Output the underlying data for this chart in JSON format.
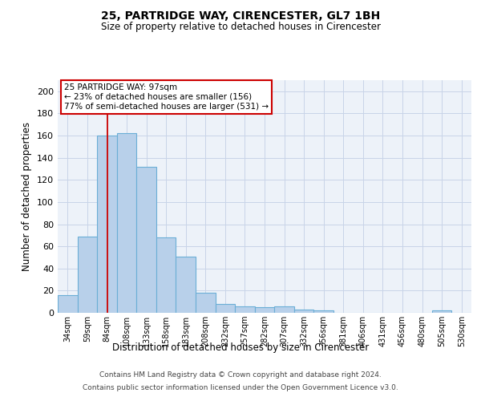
{
  "title": "25, PARTRIDGE WAY, CIRENCESTER, GL7 1BH",
  "subtitle": "Size of property relative to detached houses in Cirencester",
  "xlabel": "Distribution of detached houses by size in Cirencester",
  "ylabel": "Number of detached properties",
  "bin_labels": [
    "34sqm",
    "59sqm",
    "84sqm",
    "108sqm",
    "133sqm",
    "158sqm",
    "183sqm",
    "208sqm",
    "232sqm",
    "257sqm",
    "282sqm",
    "307sqm",
    "332sqm",
    "356sqm",
    "381sqm",
    "406sqm",
    "431sqm",
    "456sqm",
    "480sqm",
    "505sqm",
    "530sqm"
  ],
  "bar_values": [
    16,
    69,
    160,
    162,
    132,
    68,
    51,
    18,
    8,
    6,
    5,
    6,
    3,
    2,
    0,
    0,
    0,
    0,
    0,
    2,
    0
  ],
  "bar_color": "#b8d0ea",
  "bar_edge_color": "#6baed6",
  "red_line_x": 63.5,
  "ylim": [
    0,
    210
  ],
  "yticks": [
    0,
    20,
    40,
    60,
    80,
    100,
    120,
    140,
    160,
    180,
    200
  ],
  "annotation_text": "25 PARTRIDGE WAY: 97sqm\n← 23% of detached houses are smaller (156)\n77% of semi-detached houses are larger (531) →",
  "annotation_box_color": "#ffffff",
  "annotation_box_edge_color": "#cc0000",
  "grid_color": "#c8d4e8",
  "background_color": "#edf2f9",
  "footer_line1": "Contains HM Land Registry data © Crown copyright and database right 2024.",
  "footer_line2": "Contains public sector information licensed under the Open Government Licence v3.0.",
  "n_bins": 21,
  "bin_width": 25
}
